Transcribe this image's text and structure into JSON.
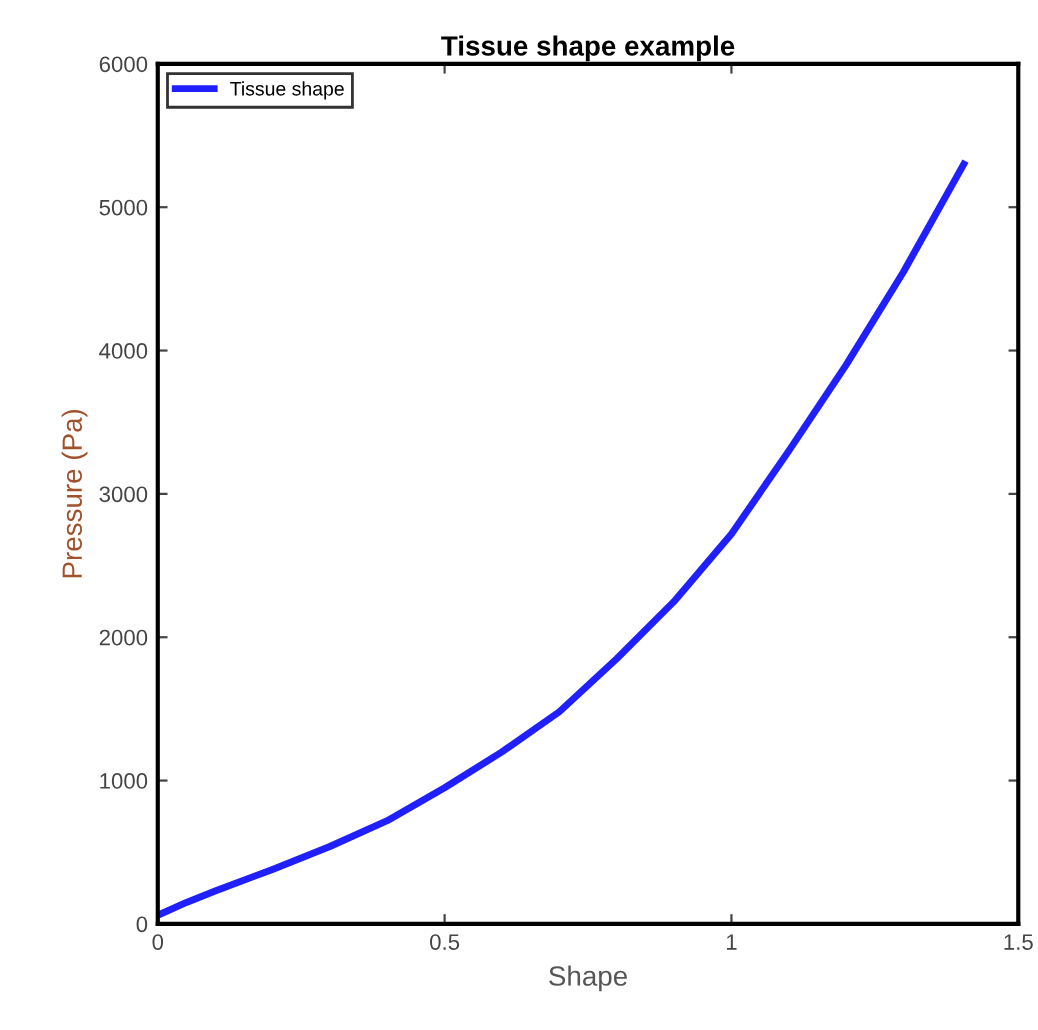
{
  "chart_data": {
    "type": "line",
    "title": "Tissue shape example",
    "xlabel": "Shape",
    "ylabel": "Pressure (Pa)",
    "x": [
      0,
      0.05,
      0.1,
      0.2,
      0.3,
      0.4,
      0.5,
      0.6,
      0.7,
      0.8,
      0.9,
      1.0,
      1.1,
      1.2,
      1.3,
      1.405
    ],
    "series": [
      {
        "name": "Tissue shape",
        "color": "#1f1fff",
        "values": [
          60,
          150,
          230,
          380,
          540,
          720,
          950,
          1200,
          1480,
          1850,
          2250,
          2720,
          3300,
          3900,
          4550,
          5300
        ]
      }
    ],
    "xlim": [
      0,
      1.5
    ],
    "xticks": [
      0,
      0.5,
      1,
      1.5
    ],
    "ylim": [
      0,
      6000
    ],
    "yticks": [
      0,
      1000,
      2000,
      3000,
      4000,
      5000,
      6000
    ],
    "legend": "top left",
    "grid": false
  }
}
